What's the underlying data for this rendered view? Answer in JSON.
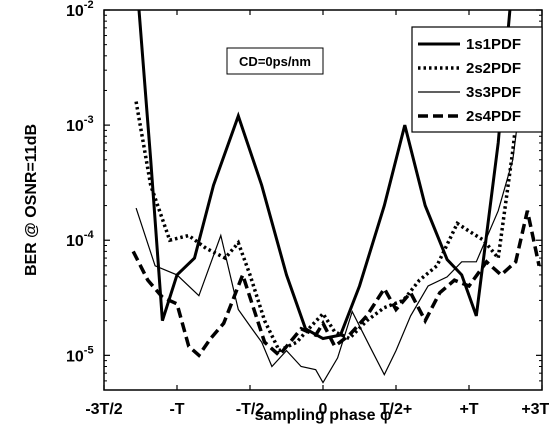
{
  "chart_data": {
    "type": "line",
    "title": "",
    "xlabel": "sampling phase φ",
    "ylabel": "BER @ OSNR=11dB",
    "yscale": "log",
    "xlim": [
      -1.5,
      1.5
    ],
    "ylim": [
      5e-06,
      0.01
    ],
    "x_unit": "T",
    "grid": false,
    "legend": "top-right",
    "annotation": "CD=0ps/nm",
    "x_ticks": [
      {
        "value": -1.5,
        "label": "-3T/2"
      },
      {
        "value": -1.0,
        "label": "-T"
      },
      {
        "value": -0.5,
        "label": "-T/2"
      },
      {
        "value": 0.0,
        "label": "0"
      },
      {
        "value": 0.5,
        "label": "T/2+"
      },
      {
        "value": 1.0,
        "label": "+T"
      },
      {
        "value": 1.5,
        "label": "+3T/2"
      }
    ],
    "y_ticks": [
      {
        "value": 1e-05,
        "label": "10",
        "exp": "-5"
      },
      {
        "value": 0.0001,
        "label": "10",
        "exp": "-4"
      },
      {
        "value": 0.001,
        "label": "10",
        "exp": "-3"
      },
      {
        "value": 0.01,
        "label": "10",
        "exp": "-2"
      }
    ],
    "series": [
      {
        "name": "1s1PDF",
        "style": "solid-thick",
        "x": [
          -1.26,
          -1.18,
          -1.1,
          -1.0,
          -0.88,
          -0.75,
          -0.58,
          -0.42,
          -0.25,
          -0.12,
          0.0,
          0.12,
          0.25,
          0.42,
          0.56,
          0.7,
          0.85,
          0.95,
          1.05,
          1.2,
          1.28
        ],
        "y": [
          0.01,
          0.0005,
          2e-05,
          5e-05,
          7e-05,
          0.0003,
          0.0012,
          0.0003,
          5e-05,
          1.7e-05,
          1.4e-05,
          1.5e-05,
          4e-05,
          0.0002,
          0.001,
          0.0002,
          6.8e-05,
          5e-05,
          2.2e-05,
          0.0007,
          0.01
        ]
      },
      {
        "name": "2s2PDF",
        "style": "dotted-thick",
        "x": [
          -1.28,
          -1.18,
          -1.05,
          -0.92,
          -0.8,
          -0.67,
          -0.58,
          -0.5,
          -0.4,
          -0.3,
          -0.18,
          -0.08,
          0.0,
          0.08,
          0.18,
          0.3,
          0.42,
          0.55,
          0.66,
          0.78,
          0.92,
          1.0,
          1.1,
          1.2,
          1.3,
          1.38
        ],
        "y": [
          0.0016,
          0.0003,
          0.0001,
          0.00011,
          8.5e-05,
          7e-05,
          9.5e-05,
          5e-05,
          2e-05,
          1.1e-05,
          1.3e-05,
          1.8e-05,
          2.3e-05,
          1.6e-05,
          1.4e-05,
          2e-05,
          2.6e-05,
          3e-05,
          4.5e-05,
          6e-05,
          0.00014,
          0.00012,
          0.0001,
          7e-05,
          0.0006,
          0.005
        ]
      },
      {
        "name": "3s3PDF",
        "style": "solid-thin",
        "x": [
          -1.28,
          -1.15,
          -1.0,
          -0.85,
          -0.7,
          -0.58,
          -0.5,
          -0.42,
          -0.35,
          -0.25,
          -0.15,
          -0.05,
          0.0,
          0.1,
          0.2,
          0.32,
          0.42,
          0.5,
          0.6,
          0.72,
          0.85,
          0.95,
          1.05,
          1.2,
          1.3,
          1.4
        ],
        "y": [
          0.00019,
          6e-05,
          5e-05,
          3.3e-05,
          0.00011,
          2.5e-05,
          1.8e-05,
          1.3e-05,
          8e-06,
          1.1e-05,
          8e-06,
          7.5e-06,
          5.8e-06,
          9.5e-06,
          2.4e-05,
          1.2e-05,
          6.8e-06,
          1.1e-05,
          2.2e-05,
          4e-05,
          4.8e-05,
          6.5e-05,
          6.5e-05,
          0.00018,
          0.0005,
          0.005
        ]
      },
      {
        "name": "2s4PDF",
        "style": "dashed-thick",
        "x": [
          -1.3,
          -1.2,
          -1.1,
          -1.0,
          -0.92,
          -0.85,
          -0.77,
          -0.68,
          -0.55,
          -0.4,
          -0.3,
          -0.15,
          -0.05,
          0.0,
          0.08,
          0.18,
          0.3,
          0.42,
          0.5,
          0.6,
          0.7,
          0.8,
          0.9,
          1.0,
          1.12,
          1.22,
          1.32,
          1.4,
          1.48
        ],
        "y": [
          8e-05,
          4.5e-05,
          3.2e-05,
          2.8e-05,
          1.2e-05,
          1e-05,
          1.4e-05,
          1.9e-05,
          5e-05,
          1.3e-05,
          1e-05,
          1.7e-05,
          1.5e-05,
          1.9e-05,
          1.2e-05,
          1.5e-05,
          2.2e-05,
          3.8e-05,
          2.5e-05,
          3.5e-05,
          2e-05,
          3.5e-05,
          4.5e-05,
          4e-05,
          6.5e-05,
          5e-05,
          6.5e-05,
          0.00018,
          6e-05
        ]
      }
    ]
  }
}
